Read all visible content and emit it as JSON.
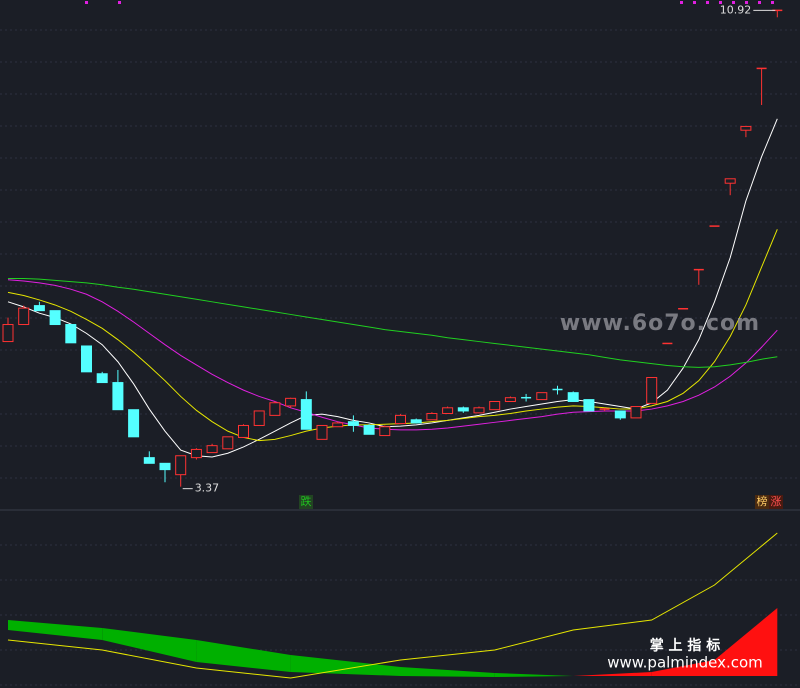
{
  "chart_data": [
    {
      "type": "candlestick",
      "categories": [
        null,
        null,
        null,
        null,
        null,
        null,
        null,
        null,
        null,
        null,
        null,
        null,
        null,
        null,
        null,
        null,
        null,
        null,
        null,
        null,
        null,
        null,
        null,
        null,
        null,
        null,
        null,
        null,
        null,
        null,
        null,
        null,
        null,
        null,
        null,
        null,
        null,
        null,
        null,
        null,
        null,
        null,
        null,
        null,
        null,
        null,
        null,
        null,
        null,
        null
      ],
      "open": [
        5.67,
        5.94,
        6.24,
        6.16,
        5.94,
        5.6,
        5.16,
        5.02,
        4.59,
        3.83,
        3.74,
        3.56,
        3.83,
        3.91,
        3.97,
        4.15,
        4.34,
        4.5,
        4.65,
        4.75,
        4.12,
        4.32,
        4.4,
        4.34,
        4.18,
        4.37,
        4.43,
        4.43,
        4.53,
        4.62,
        4.54,
        4.59,
        4.72,
        4.78,
        4.75,
        4.91,
        4.86,
        4.75,
        4.59,
        4.57,
        4.46,
        4.69,
        5.64,
        6.19,
        6.81,
        7.5,
        8.18,
        9.02,
        10.0,
        10.92
      ],
      "high": [
        6.05,
        6.24,
        6.3,
        6.16,
        5.94,
        5.6,
        5.19,
        5.22,
        4.59,
        3.93,
        3.74,
        3.86,
        3.98,
        4.05,
        4.16,
        4.36,
        4.57,
        4.72,
        4.78,
        4.88,
        4.34,
        4.4,
        4.5,
        4.36,
        4.34,
        4.52,
        4.45,
        4.55,
        4.64,
        4.64,
        4.64,
        4.72,
        4.8,
        4.84,
        4.86,
        4.97,
        4.88,
        4.75,
        4.62,
        4.57,
        4.64,
        5.1,
        5.64,
        6.19,
        6.81,
        7.5,
        8.25,
        9.08,
        10.0,
        10.92
      ],
      "low": [
        5.67,
        5.94,
        6.16,
        5.94,
        5.65,
        5.19,
        5.02,
        4.59,
        4.16,
        3.74,
        3.44,
        3.37,
        3.8,
        3.91,
        3.97,
        4.15,
        4.34,
        4.5,
        4.62,
        4.28,
        4.12,
        4.32,
        4.24,
        4.2,
        4.18,
        4.37,
        4.37,
        4.43,
        4.53,
        4.54,
        4.54,
        4.59,
        4.72,
        4.72,
        4.75,
        4.83,
        4.72,
        4.57,
        4.57,
        4.43,
        4.46,
        4.69,
        5.64,
        6.19,
        6.57,
        7.5,
        7.99,
        8.91,
        9.42,
        10.81
      ],
      "close": [
        5.94,
        6.2,
        6.16,
        5.94,
        5.65,
        5.19,
        5.02,
        4.59,
        4.16,
        3.74,
        3.64,
        3.86,
        3.96,
        4.02,
        4.16,
        4.34,
        4.57,
        4.7,
        4.77,
        4.28,
        4.34,
        4.38,
        4.34,
        4.2,
        4.32,
        4.5,
        4.38,
        4.53,
        4.62,
        4.57,
        4.62,
        4.72,
        4.78,
        4.77,
        4.86,
        4.9,
        4.72,
        4.57,
        4.6,
        4.46,
        4.64,
        5.1,
        5.64,
        6.19,
        6.81,
        7.5,
        8.25,
        9.08,
        10.0,
        10.92
      ],
      "up_color": "#ff3232",
      "down_color": "#54ffff",
      "series": [
        {
          "color": "#ffffff",
          "values": [
            6.3,
            6.22,
            6.12,
            6.05,
            5.95,
            5.8,
            5.62,
            5.35,
            5.0,
            4.6,
            4.25,
            3.95,
            3.86,
            3.84,
            3.9,
            4.0,
            4.12,
            4.25,
            4.38,
            4.5,
            4.52,
            4.48,
            4.42,
            4.38,
            4.32,
            4.33,
            4.35,
            4.38,
            4.42,
            4.46,
            4.5,
            4.55,
            4.6,
            4.64,
            4.68,
            4.72,
            4.75,
            4.72,
            4.68,
            4.64,
            4.6,
            4.7,
            4.9,
            5.25,
            5.7,
            6.3,
            7.0,
            7.9,
            8.6,
            9.2
          ]
        },
        {
          "color": "#e6e600",
          "values": [
            6.45,
            6.4,
            6.33,
            6.25,
            6.15,
            6.02,
            5.88,
            5.7,
            5.5,
            5.28,
            5.05,
            4.8,
            4.58,
            4.4,
            4.25,
            4.15,
            4.1,
            4.12,
            4.18,
            4.25,
            4.3,
            4.33,
            4.35,
            4.35,
            4.36,
            4.37,
            4.38,
            4.4,
            4.42,
            4.45,
            4.48,
            4.5,
            4.53,
            4.57,
            4.6,
            4.63,
            4.65,
            4.64,
            4.62,
            4.6,
            4.6,
            4.65,
            4.72,
            4.85,
            5.05,
            5.35,
            5.75,
            6.25,
            6.85,
            7.45
          ]
        },
        {
          "color": "#e020e0",
          "values": [
            6.65,
            6.63,
            6.6,
            6.56,
            6.5,
            6.42,
            6.3,
            6.15,
            5.98,
            5.8,
            5.62,
            5.45,
            5.3,
            5.15,
            5.02,
            4.9,
            4.8,
            4.72,
            4.62,
            4.55,
            4.47,
            4.4,
            4.35,
            4.3,
            4.28,
            4.27,
            4.27,
            4.28,
            4.3,
            4.33,
            4.36,
            4.39,
            4.42,
            4.45,
            4.48,
            4.52,
            4.55,
            4.56,
            4.57,
            4.57,
            4.57,
            4.6,
            4.65,
            4.72,
            4.82,
            4.95,
            5.12,
            5.33,
            5.58,
            5.85
          ]
        },
        {
          "color": "#20d020",
          "values": [
            6.67,
            6.67,
            6.66,
            6.64,
            6.62,
            6.6,
            6.57,
            6.53,
            6.5,
            6.46,
            6.42,
            6.38,
            6.34,
            6.3,
            6.26,
            6.22,
            6.18,
            6.14,
            6.1,
            6.06,
            6.02,
            5.98,
            5.94,
            5.9,
            5.86,
            5.83,
            5.8,
            5.77,
            5.73,
            5.7,
            5.67,
            5.64,
            5.61,
            5.58,
            5.55,
            5.52,
            5.49,
            5.46,
            5.42,
            5.38,
            5.35,
            5.32,
            5.29,
            5.27,
            5.26,
            5.27,
            5.3,
            5.34,
            5.39,
            5.43
          ]
        }
      ],
      "ylim": [
        3.0,
        11.1
      ],
      "annotations": [
        "跌",
        "榜",
        "涨"
      ]
    },
    {
      "type": "band",
      "x": [
        0,
        6,
        12,
        18,
        25,
        31,
        36,
        41,
        45,
        49
      ],
      "upper": [
        5.6,
        4.8,
        3.6,
        2.1,
        0.9,
        0.3,
        0,
        0.4,
        1.6,
        6.8
      ],
      "lower": [
        4.6,
        3.6,
        1.4,
        0.4,
        0,
        -0.1,
        0,
        0,
        0,
        0
      ],
      "fill_colors": [
        "#00b000",
        "#ff1010"
      ],
      "series": [
        {
          "color": "#e6e600",
          "values": [
            3.6,
            2.6,
            0.8,
            -0.2,
            1.6,
            2.6,
            4.6,
            5.6,
            9.1,
            14.3
          ]
        }
      ],
      "ylim": [
        -1.2,
        16.4
      ]
    }
  ],
  "watermarks": [
    "www.6o7o.com",
    "掌 上 指 标",
    "www.palmindex.com"
  ]
}
